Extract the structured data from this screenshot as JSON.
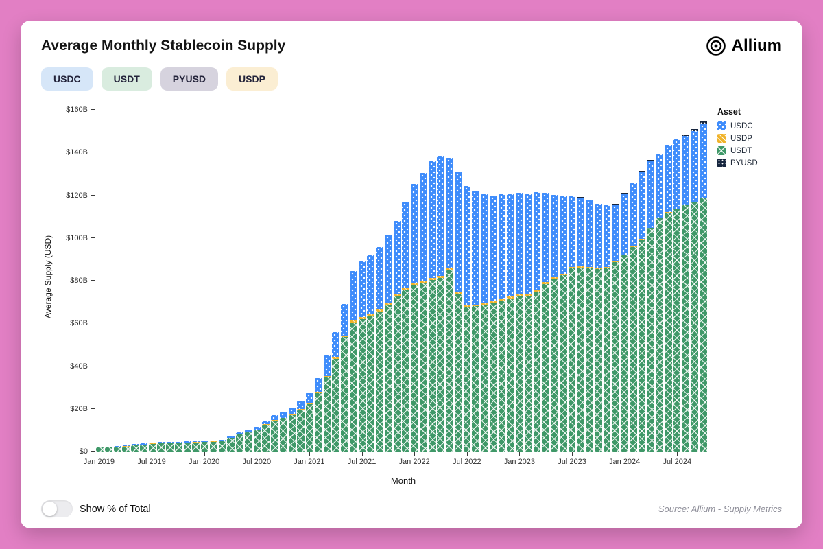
{
  "page": {
    "title": "Average Monthly Stablecoin Supply",
    "brand": "Allium"
  },
  "filters": [
    {
      "key": "usdc",
      "label": "USDC",
      "bg": "#d6e6f8"
    },
    {
      "key": "usdt",
      "label": "USDT",
      "bg": "#d9ecdf"
    },
    {
      "key": "pyusd",
      "label": "PYUSD",
      "bg": "#d6d3de"
    },
    {
      "key": "usdp",
      "label": "USDP",
      "bg": "#fbeed3"
    }
  ],
  "footer": {
    "toggle_label": "Show % of Total",
    "toggle_on": false,
    "source": "Source: Allium - Supply Metrics"
  },
  "chart_data": {
    "type": "bar",
    "stacked": true,
    "title": "Average Monthly Stablecoin Supply",
    "xlabel": "Month",
    "ylabel": "Average Supply (USD)",
    "unit": "USD billions",
    "ylim": [
      0,
      160
    ],
    "grid": false,
    "y_ticks": [
      "$0",
      "$20B",
      "$40B",
      "$60B",
      "$80B",
      "$100B",
      "$120B",
      "$140B",
      "$160B"
    ],
    "x_ticks": [
      {
        "index": 0,
        "label": "Jan 2019"
      },
      {
        "index": 6,
        "label": "Jul 2019"
      },
      {
        "index": 12,
        "label": "Jan 2020"
      },
      {
        "index": 18,
        "label": "Jul 2020"
      },
      {
        "index": 24,
        "label": "Jan 2021"
      },
      {
        "index": 30,
        "label": "Jul 2021"
      },
      {
        "index": 36,
        "label": "Jan 2022"
      },
      {
        "index": 42,
        "label": "Jul 2022"
      },
      {
        "index": 48,
        "label": "Jan 2023"
      },
      {
        "index": 54,
        "label": "Jul 2023"
      },
      {
        "index": 60,
        "label": "Jan 2024"
      },
      {
        "index": 66,
        "label": "Jul 2024"
      }
    ],
    "legend": {
      "title": "Asset",
      "position": "right",
      "entries": [
        {
          "key": "usdc",
          "label": "USDC",
          "color": "#3e8cfb"
        },
        {
          "key": "usdp",
          "label": "USDP",
          "color": "#f0b32a"
        },
        {
          "key": "usdt",
          "label": "USDT",
          "color": "#3f9868"
        },
        {
          "key": "pyusd",
          "label": "PYUSD",
          "color": "#17263f"
        }
      ]
    },
    "categories": [
      "Jan 2019",
      "Feb 2019",
      "Mar 2019",
      "Apr 2019",
      "May 2019",
      "Jun 2019",
      "Jul 2019",
      "Aug 2019",
      "Sep 2019",
      "Oct 2019",
      "Nov 2019",
      "Dec 2019",
      "Jan 2020",
      "Feb 2020",
      "Mar 2020",
      "Apr 2020",
      "May 2020",
      "Jun 2020",
      "Jul 2020",
      "Aug 2020",
      "Sep 2020",
      "Oct 2020",
      "Nov 2020",
      "Dec 2020",
      "Jan 2021",
      "Feb 2021",
      "Mar 2021",
      "Apr 2021",
      "May 2021",
      "Jun 2021",
      "Jul 2021",
      "Aug 2021",
      "Sep 2021",
      "Oct 2021",
      "Nov 2021",
      "Dec 2021",
      "Jan 2022",
      "Feb 2022",
      "Mar 2022",
      "Apr 2022",
      "May 2022",
      "Jun 2022",
      "Jul 2022",
      "Aug 2022",
      "Sep 2022",
      "Oct 2022",
      "Nov 2022",
      "Dec 2022",
      "Jan 2023",
      "Feb 2023",
      "Mar 2023",
      "Apr 2023",
      "May 2023",
      "Jun 2023",
      "Jul 2023",
      "Aug 2023",
      "Sep 2023",
      "Oct 2023",
      "Nov 2023",
      "Dec 2023",
      "Jan 2024",
      "Feb 2024",
      "Mar 2024",
      "Apr 2024",
      "May 2024",
      "Jun 2024",
      "Jul 2024",
      "Aug 2024",
      "Sep 2024",
      "Oct 2024"
    ],
    "series": [
      {
        "key": "usdt",
        "name": "USDT",
        "color": "#3f9868",
        "values": [
          2.0,
          2.0,
          2.1,
          2.4,
          2.9,
          3.2,
          3.6,
          3.8,
          3.9,
          4.0,
          4.1,
          4.2,
          4.4,
          4.5,
          4.7,
          6.3,
          7.9,
          9.2,
          10.1,
          12.6,
          14.5,
          15.6,
          17.1,
          19.6,
          22.4,
          27.5,
          35.0,
          43.5,
          53.5,
          60.5,
          62.0,
          63.5,
          65.5,
          68.5,
          72.5,
          75.5,
          78.0,
          79.2,
          80.3,
          81.2,
          84.8,
          73.5,
          67.5,
          68.0,
          68.6,
          69.5,
          70.6,
          71.8,
          72.6,
          73.0,
          74.8,
          78.5,
          80.9,
          82.6,
          85.8,
          86.2,
          85.9,
          85.5,
          86.0,
          88.6,
          91.9,
          95.9,
          99.4,
          104.6,
          109.2,
          111.9,
          113.7,
          115.4,
          117.0,
          118.8
        ]
      },
      {
        "key": "usdp",
        "name": "USDP",
        "color": "#f0b32a",
        "values": [
          0.1,
          0.1,
          0.1,
          0.1,
          0.15,
          0.15,
          0.15,
          0.15,
          0.2,
          0.2,
          0.2,
          0.2,
          0.2,
          0.2,
          0.2,
          0.25,
          0.25,
          0.25,
          0.25,
          0.25,
          0.25,
          0.25,
          0.3,
          0.3,
          0.35,
          0.4,
          0.5,
          0.7,
          0.85,
          0.85,
          0.9,
          0.9,
          0.95,
          0.95,
          0.95,
          0.95,
          0.95,
          0.95,
          0.95,
          0.95,
          0.95,
          0.9,
          0.9,
          0.9,
          0.9,
          0.9,
          0.9,
          0.9,
          0.9,
          0.85,
          0.8,
          0.8,
          0.75,
          0.7,
          0.65,
          0.6,
          0.55,
          0.5,
          0.45,
          0.4,
          0.4,
          0.35,
          0.3,
          0.25,
          0.2,
          0.15,
          0.15,
          0.1,
          0.1,
          0.1
        ]
      },
      {
        "key": "usdc",
        "name": "USDC",
        "color": "#3e8cfb",
        "values": [
          0.3,
          0.25,
          0.25,
          0.3,
          0.35,
          0.4,
          0.4,
          0.45,
          0.45,
          0.45,
          0.45,
          0.5,
          0.5,
          0.45,
          0.6,
          0.7,
          0.75,
          1.0,
          1.1,
          1.4,
          2.2,
          2.8,
          3.3,
          3.9,
          4.8,
          6.6,
          9.6,
          11.6,
          14.6,
          23.2,
          26.2,
          27.6,
          29.2,
          32.2,
          34.6,
          40.6,
          46.5,
          50.4,
          54.8,
          55.9,
          51.8,
          56.6,
          56.1,
          53.1,
          51.0,
          49.6,
          49.0,
          47.8,
          47.5,
          46.7,
          45.9,
          41.7,
          38.4,
          36.2,
          33.1,
          32.2,
          31.5,
          29.9,
          28.9,
          26.8,
          28.4,
          29.5,
          31.5,
          31.4,
          29.8,
          31.1,
          32.2,
          32.3,
          33.1,
          34.6
        ]
      },
      {
        "key": "pyusd",
        "name": "PYUSD",
        "color": "#17263f",
        "values": [
          0,
          0,
          0,
          0,
          0,
          0,
          0,
          0,
          0,
          0,
          0,
          0,
          0,
          0,
          0,
          0,
          0,
          0,
          0,
          0,
          0,
          0,
          0,
          0,
          0,
          0,
          0,
          0,
          0,
          0,
          0,
          0,
          0,
          0,
          0,
          0,
          0,
          0,
          0,
          0,
          0,
          0,
          0,
          0,
          0,
          0,
          0,
          0,
          0,
          0,
          0,
          0,
          0,
          0,
          0,
          0.05,
          0.1,
          0.15,
          0.2,
          0.25,
          0.3,
          0.3,
          0.3,
          0.25,
          0.3,
          0.4,
          0.5,
          0.7,
          0.85,
          1.0
        ]
      }
    ]
  }
}
